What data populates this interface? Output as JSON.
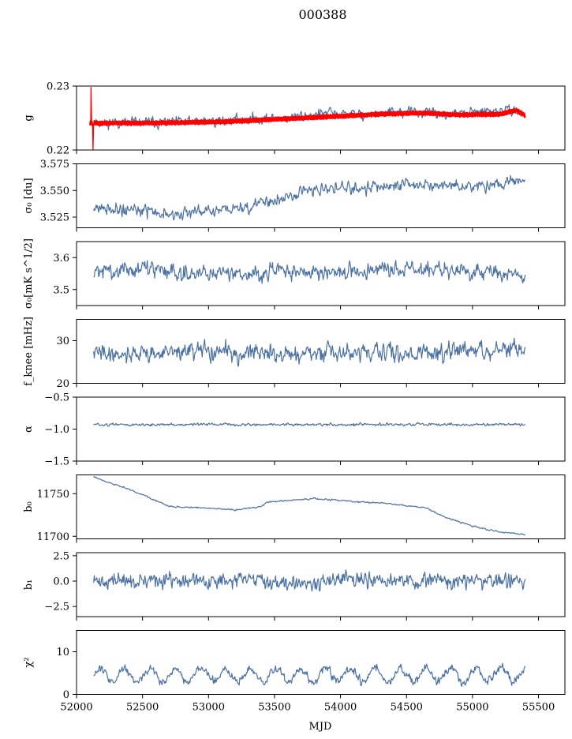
{
  "figure_title": "000388",
  "colors": {
    "primary_series": "#4c72a4",
    "fit_series": "#ff0000",
    "frame": "#000000"
  },
  "chart_data": [
    {
      "id": "g",
      "type": "line",
      "ylabel": "g",
      "ylim": [
        0.22,
        0.23
      ],
      "yticks": [
        0.22,
        0.23
      ],
      "ytick_labels": [
        "0.22",
        "0.23"
      ],
      "show_xtick_labels": false,
      "series": [
        {
          "name": "g",
          "color": "#4c72a4",
          "style": "noisy",
          "anchors_x": [
            52100,
            52200,
            52400,
            52700,
            53000,
            53300,
            53600,
            53900,
            54200,
            54500,
            54800,
            55100,
            55300,
            55400
          ],
          "anchors_y": [
            0.2245,
            0.2243,
            0.2243,
            0.2243,
            0.2245,
            0.2248,
            0.225,
            0.2258,
            0.2255,
            0.226,
            0.2255,
            0.226,
            0.2262,
            0.2255
          ],
          "noise": 0.0007,
          "seed": 11
        },
        {
          "name": "g_smooth",
          "color": "#ff0000",
          "style": "band",
          "anchors_x": [
            52100,
            52200,
            52500,
            52800,
            53100,
            53400,
            53700,
            54000,
            54300,
            54600,
            54900,
            55200,
            55330,
            55400
          ],
          "anchors_y": [
            0.2242,
            0.2242,
            0.2242,
            0.2243,
            0.2244,
            0.2247,
            0.225,
            0.2253,
            0.2256,
            0.2258,
            0.2255,
            0.2256,
            0.2262,
            0.2254
          ],
          "noise": 0.0004,
          "seed": 5,
          "spikes": [
            {
              "x": 52110,
              "y": 0.2298
            },
            {
              "x": 52125,
              "y": 0.22
            }
          ]
        }
      ]
    },
    {
      "id": "sigma0_du",
      "type": "line",
      "ylabel": "σ₀ [du]",
      "ylim": [
        3.515,
        3.575
      ],
      "yticks": [
        3.525,
        3.55,
        3.575
      ],
      "ytick_labels": [
        "3.525",
        "3.550",
        "3.575"
      ],
      "show_xtick_labels": false,
      "series": [
        {
          "name": "sigma0_du",
          "color": "#4c72a4",
          "style": "noisy",
          "anchors_x": [
            52130,
            52400,
            52700,
            53000,
            53300,
            53500,
            53700,
            54000,
            54300,
            54700,
            55000,
            55300,
            55400
          ],
          "anchors_y": [
            3.535,
            3.532,
            3.528,
            3.53,
            3.535,
            3.54,
            3.548,
            3.552,
            3.554,
            3.556,
            3.552,
            3.558,
            3.557
          ],
          "noise": 0.005,
          "seed": 21
        }
      ]
    },
    {
      "id": "sigma0_mK",
      "type": "line",
      "ylabel": "σ₀[mK s^1/2]",
      "ylim": [
        3.45,
        3.65
      ],
      "yticks": [
        3.5,
        3.6
      ],
      "ytick_labels": [
        "3.5",
        "3.6"
      ],
      "show_xtick_labels": false,
      "series": [
        {
          "name": "sigma0_mK",
          "color": "#4c72a4",
          "style": "noisy",
          "anchors_x": [
            52130,
            52500,
            53000,
            53500,
            54000,
            54500,
            55000,
            55400
          ],
          "anchors_y": [
            3.555,
            3.565,
            3.55,
            3.555,
            3.555,
            3.565,
            3.555,
            3.545
          ],
          "noise": 0.022,
          "seed": 31
        }
      ]
    },
    {
      "id": "fknee",
      "type": "line",
      "ylabel": "f_knee [mHz]",
      "ylim": [
        20,
        35
      ],
      "yticks": [
        20,
        30
      ],
      "ytick_labels": [
        "20",
        "30"
      ],
      "show_xtick_labels": false,
      "series": [
        {
          "name": "fknee",
          "color": "#4c72a4",
          "style": "noisy",
          "anchors_x": [
            52130,
            52500,
            53000,
            53500,
            54000,
            54500,
            55000,
            55400
          ],
          "anchors_y": [
            27.0,
            27.0,
            27.5,
            26.8,
            27.0,
            27.2,
            27.5,
            27.8
          ],
          "noise": 1.8,
          "seed": 41
        }
      ]
    },
    {
      "id": "alpha",
      "type": "line",
      "ylabel": "α",
      "ylim": [
        -1.5,
        -0.5
      ],
      "yticks": [
        -1.5,
        -1.0,
        -0.5
      ],
      "ytick_labels": [
        "−1.5",
        "−1.0",
        "−0.5"
      ],
      "show_xtick_labels": false,
      "series": [
        {
          "name": "alpha",
          "color": "#4c72a4",
          "style": "noisy",
          "anchors_x": [
            52130,
            55400
          ],
          "anchors_y": [
            -0.93,
            -0.93
          ],
          "noise": 0.018,
          "seed": 51
        }
      ]
    },
    {
      "id": "b0",
      "type": "line",
      "ylabel": "b₀",
      "ylim": [
        11697,
        11772
      ],
      "yticks": [
        11700,
        11750
      ],
      "ytick_labels": [
        "11700",
        "11750"
      ],
      "show_xtick_labels": false,
      "series": [
        {
          "name": "b0",
          "color": "#4c72a4",
          "style": "noisy",
          "anchors_x": [
            52130,
            52200,
            52400,
            52600,
            52700,
            53000,
            53200,
            53400,
            53450,
            53600,
            53800,
            54100,
            54400,
            54650,
            54800,
            55000,
            55200,
            55400
          ],
          "anchors_y": [
            11770,
            11765,
            11755,
            11742,
            11735,
            11733,
            11731,
            11735,
            11740,
            11742,
            11744,
            11741,
            11738,
            11733,
            11722,
            11712,
            11705,
            11702
          ],
          "noise": 0.8,
          "seed": 61
        }
      ]
    },
    {
      "id": "b1",
      "type": "line",
      "ylabel": "b₁",
      "ylim": [
        -3.5,
        2.8
      ],
      "yticks": [
        -2.5,
        0.0,
        2.5
      ],
      "ytick_labels": [
        "−2.5",
        "0.0",
        "2.5"
      ],
      "show_xtick_labels": false,
      "series": [
        {
          "name": "b1",
          "color": "#4c72a4",
          "style": "noisy",
          "anchors_x": [
            52130,
            55400
          ],
          "anchors_y": [
            0.0,
            0.0
          ],
          "noise": 0.65,
          "seed": 71
        }
      ]
    },
    {
      "id": "chi2",
      "type": "line",
      "ylabel": "χ²",
      "ylim": [
        0,
        15
      ],
      "yticks": [
        0,
        10
      ],
      "ytick_labels": [
        "0",
        "10"
      ],
      "show_xtick_labels": true,
      "series": [
        {
          "name": "chi2",
          "color": "#4c72a4",
          "style": "oscillating",
          "anchors_x": [
            52130,
            55400
          ],
          "anchors_y": [
            4.5,
            4.5
          ],
          "amplitude": 1.6,
          "period": 190,
          "noise": 0.9,
          "seed": 81
        }
      ]
    }
  ],
  "x_axis": {
    "label": "MJD",
    "xlim": [
      52000,
      55700
    ],
    "ticks": [
      52000,
      52500,
      53000,
      53500,
      54000,
      54500,
      55000,
      55500
    ],
    "tick_labels": [
      "52000",
      "52500",
      "53000",
      "53500",
      "54000",
      "54500",
      "55000",
      "55500"
    ]
  }
}
